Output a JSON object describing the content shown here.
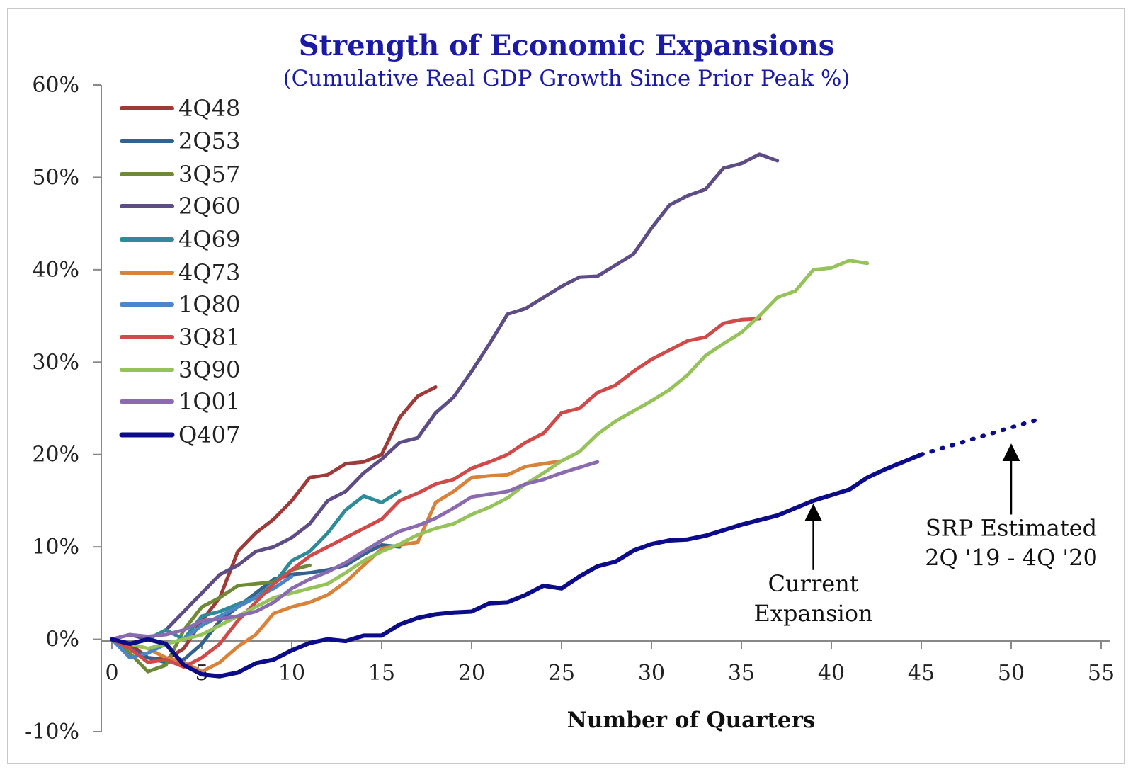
{
  "chart_data": {
    "type": "line",
    "title": "Strength of Economic Expansions",
    "subtitle": "(Cumulative Real GDP Growth Since Prior Peak %)",
    "xlabel": "Number of Quarters",
    "ylabel": "",
    "xlim": [
      0,
      55
    ],
    "ylim": [
      -10,
      60
    ],
    "x_ticks": [
      "0",
      "5",
      "10",
      "15",
      "20",
      "25",
      "30",
      "35",
      "40",
      "45",
      "50",
      "55"
    ],
    "y_ticks": [
      "60%",
      "50%",
      "40%",
      "30%",
      "20%",
      "10%",
      "0%",
      "-10%"
    ],
    "grid": false,
    "legend_position": "top-left",
    "series": [
      {
        "name": "4Q48",
        "color": "#9e3a38",
        "values": [
          0,
          -0.5,
          -2,
          -2.2,
          -1,
          2,
          4.5,
          9.5,
          11.5,
          13,
          15,
          17.5,
          17.8,
          19,
          19.2,
          20,
          24,
          26.3,
          27.3
        ]
      },
      {
        "name": "2Q53",
        "color": "#33628f",
        "values": [
          0,
          -1,
          -2,
          -2.5,
          -2.2,
          -0.5,
          2,
          3.5,
          5,
          6.5,
          7,
          7.2,
          7.5,
          8,
          9.2,
          10.2,
          10
        ]
      },
      {
        "name": "3Q57",
        "color": "#6f8a37",
        "values": [
          0,
          -1.5,
          -3.5,
          -2.8,
          1,
          3.5,
          4.5,
          5.8,
          6,
          6.2,
          7.5,
          8
        ]
      },
      {
        "name": "2Q60",
        "color": "#5e4c86",
        "values": [
          0,
          0.5,
          0,
          1,
          3,
          5,
          7,
          8,
          9.5,
          10,
          11,
          12.5,
          15,
          16,
          18,
          19.5,
          21.3,
          21.8,
          24.5,
          26.2,
          29,
          32,
          35.2,
          35.8,
          37,
          38.2,
          39.2,
          39.3,
          40.5,
          41.7,
          44.5,
          47,
          48,
          48.7,
          51,
          51.5,
          52.5,
          51.8
        ]
      },
      {
        "name": "4Q69",
        "color": "#2f8a9a",
        "values": [
          0,
          -0.5,
          0,
          1,
          0,
          2.5,
          3,
          3.8,
          4.5,
          6,
          8.5,
          9.5,
          11.5,
          14,
          15.5,
          14.8,
          16
        ]
      },
      {
        "name": "4Q73",
        "color": "#d9833a",
        "values": [
          0,
          -0.5,
          -1,
          -2,
          -2.5,
          -3.5,
          -2.5,
          -0.8,
          0.5,
          2.8,
          3.5,
          4,
          4.8,
          6.2,
          8,
          9.8,
          10.2,
          10.5,
          14.8,
          16,
          17.5,
          17.7,
          17.8,
          18.7,
          19,
          19.3
        ]
      },
      {
        "name": "1Q80",
        "color": "#4a86c8",
        "values": [
          0,
          -2,
          -1.5,
          -0.5,
          0,
          1.5,
          2.5,
          3.5,
          4.5,
          5.5,
          6.8
        ]
      },
      {
        "name": "3Q81",
        "color": "#cf4a48",
        "values": [
          0,
          -1,
          -2.5,
          -2.2,
          -3,
          -2,
          -0.5,
          2,
          4,
          6,
          7.5,
          9,
          10,
          11,
          12,
          13,
          15,
          15.8,
          16.8,
          17.3,
          18.5,
          19.2,
          20,
          21.3,
          22.3,
          24.5,
          25,
          26.7,
          27.5,
          29,
          30.3,
          31.3,
          32.3,
          32.7,
          34.2,
          34.6,
          34.7
        ]
      },
      {
        "name": "3Q90",
        "color": "#96c25a",
        "values": [
          0,
          -0.5,
          -1,
          -0.5,
          0,
          0.5,
          1.5,
          2.5,
          3.5,
          4.5,
          5,
          5.5,
          6,
          7.2,
          8.5,
          9.5,
          10.3,
          11.3,
          12,
          12.5,
          13.5,
          14.3,
          15.3,
          16.8,
          18,
          19.3,
          20.3,
          22.2,
          23.6,
          24.7,
          25.8,
          27,
          28.6,
          30.7,
          32,
          33.2,
          35,
          37,
          37.7,
          40,
          40.2,
          41,
          40.7
        ]
      },
      {
        "name": "1Q01",
        "color": "#8a6bb0",
        "values": [
          0,
          0.5,
          0.3,
          0.5,
          1,
          2,
          2.2,
          2.5,
          3,
          4,
          5.5,
          6.5,
          7.3,
          8.3,
          9.5,
          10.7,
          11.7,
          12.3,
          13.1,
          14.2,
          15.4,
          15.7,
          16,
          16.8,
          17.3,
          18,
          18.6,
          19.2
        ]
      },
      {
        "name": "Q407",
        "color": "#0c0c8a",
        "values": [
          0,
          -0.5,
          0,
          -0.5,
          -2.8,
          -3.8,
          -4,
          -3.6,
          -2.6,
          -2.2,
          -1.2,
          -0.4,
          0,
          -0.2,
          0.4,
          0.4,
          1.6,
          2.3,
          2.7,
          2.9,
          3,
          3.9,
          4,
          4.8,
          5.8,
          5.5,
          6.8,
          7.9,
          8.4,
          9.6,
          10.3,
          10.7,
          10.8,
          11.2,
          11.8,
          12.4,
          12.9,
          13.4,
          14.2,
          15,
          15.6,
          16.2,
          17.5,
          18.4,
          19.2,
          20
        ]
      },
      {
        "name": "",
        "style": "dotted",
        "color": "#0c0c8a",
        "x": [
          45,
          51.5
        ],
        "values": [
          20,
          23.8
        ]
      }
    ],
    "annotations": [
      {
        "text_lines": [
          "Current",
          "Expansion"
        ],
        "arrow_to": [
          39,
          14.5
        ],
        "arrow_from": [
          39,
          7.5
        ]
      },
      {
        "text_lines": [
          "SRP Estimated",
          "2Q '19 - 4Q '20"
        ],
        "arrow_to": [
          50,
          21
        ],
        "arrow_from": [
          50,
          13.5
        ]
      }
    ]
  }
}
